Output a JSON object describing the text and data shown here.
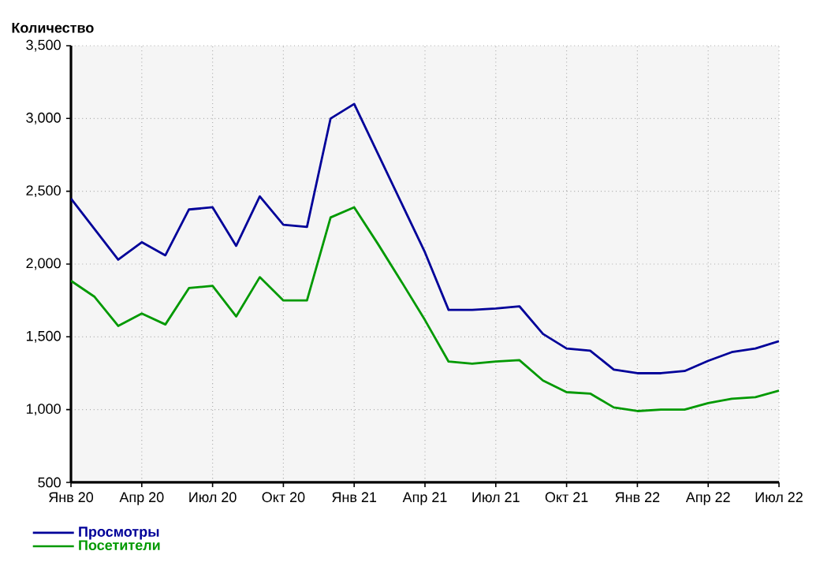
{
  "chart_data": {
    "type": "line",
    "ylabel": "Количество",
    "categories": [
      "Янв 20",
      null,
      null,
      "Апр 20",
      null,
      null,
      "Июл 20",
      null,
      null,
      "Окт 20",
      null,
      null,
      "Янв 21",
      null,
      null,
      "Апр 21",
      null,
      null,
      "Июл 21",
      null,
      null,
      "Окт 21",
      null,
      null,
      "Янв 22",
      null,
      null,
      "Апр 22",
      null,
      null,
      "Июл 22"
    ],
    "series": [
      {
        "name": "Просмотры",
        "color": "#000099",
        "values": [
          2450,
          2240,
          2030,
          2150,
          2060,
          2375,
          2390,
          2125,
          2465,
          2270,
          2255,
          3000,
          3100,
          2760,
          2420,
          2080,
          1685,
          1685,
          1695,
          1710,
          1520,
          1420,
          1405,
          1275,
          1250,
          1250,
          1265,
          1335,
          1395,
          1420,
          1470
        ]
      },
      {
        "name": "Посетители",
        "color": "#009900",
        "values": [
          1885,
          1775,
          1575,
          1660,
          1585,
          1835,
          1850,
          1640,
          1910,
          1750,
          1750,
          2320,
          2390,
          2140,
          1880,
          1615,
          1330,
          1315,
          1330,
          1340,
          1200,
          1120,
          1110,
          1015,
          990,
          1000,
          1000,
          1045,
          1075,
          1085,
          1130
        ]
      }
    ],
    "ylim": [
      500,
      3500
    ],
    "yticks": [
      {
        "value": 500,
        "label": "500"
      },
      {
        "value": 1000,
        "label": "1,000"
      },
      {
        "value": 1500,
        "label": "1,500"
      },
      {
        "value": 2000,
        "label": "2,000"
      },
      {
        "value": 2500,
        "label": "2,500"
      },
      {
        "value": 3000,
        "label": "3,000"
      },
      {
        "value": 3500,
        "label": "3,500"
      }
    ],
    "grid": true,
    "legend": "bottom left",
    "marker": "none",
    "line_style": "solid"
  }
}
